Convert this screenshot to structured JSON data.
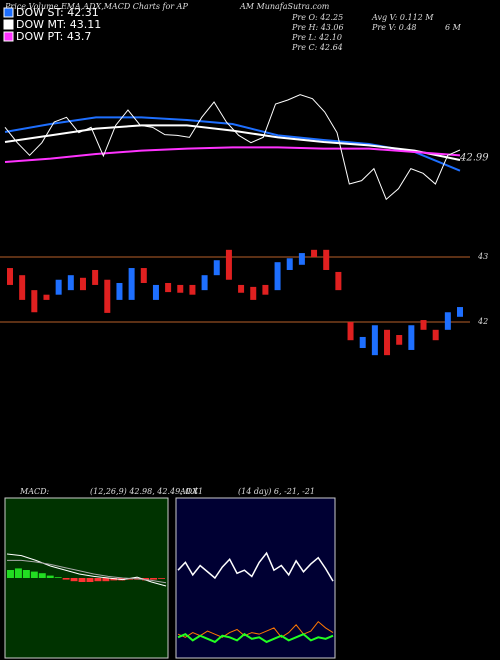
{
  "header": {
    "title": "Price,Volume,EMA,ADX,MACD Charts for AP",
    "site": "AM MunafaSutra.com"
  },
  "legend": [
    {
      "label": "DOW ST: 42.31",
      "color": "#1e6fff"
    },
    {
      "label": "DOW MT: 43.11",
      "color": "#ffffff"
    },
    {
      "label": "DOW PT: 43.7",
      "color": "#ff33ff"
    }
  ],
  "stats": [
    "Pre O: 42.25",
    "Pre H: 43.06",
    "Pre L: 42.10",
    "Pre C: 42.64",
    "Avg V: 0.112 M",
    "Pre V: 0.48",
    "6 M"
  ],
  "price_panel": {
    "ylim": [
      41.3,
      43.4
    ],
    "last_label": "42.99",
    "closes": [
      42.57,
      42.34,
      42.15,
      42.34,
      42.65,
      42.72,
      42.49,
      42.57,
      42.14,
      42.6,
      42.83,
      42.6,
      42.57,
      42.46,
      42.45,
      42.42,
      42.72,
      42.95,
      42.65,
      42.45,
      42.34,
      42.42,
      42.92,
      42.98,
      43.06,
      43.0,
      42.8,
      42.49,
      41.72,
      41.77,
      41.95,
      41.49,
      41.65,
      41.95,
      41.88,
      41.72,
      42.15,
      42.23
    ],
    "ema": [
      {
        "color": "#1e6fff",
        "values": [
          42.5,
          42.62,
          42.72,
          42.72,
          42.68,
          42.62,
          42.45,
          42.38,
          42.32,
          42.2,
          41.92
        ]
      },
      {
        "color": "#ffffff",
        "values": [
          42.35,
          42.45,
          42.55,
          42.6,
          42.6,
          42.52,
          42.42,
          42.35,
          42.3,
          42.22,
          42.08
        ]
      },
      {
        "color": "#ff33ff",
        "values": [
          42.05,
          42.1,
          42.17,
          42.22,
          42.25,
          42.27,
          42.27,
          42.25,
          42.25,
          42.2,
          42.15
        ]
      }
    ]
  },
  "candle_panel": {
    "ylim": [
      39.57,
      43.415
    ],
    "yticks": [
      42,
      43
    ],
    "candles": [
      {
        "open": 42.83,
        "close": 42.57
      },
      {
        "open": 42.72,
        "close": 42.34
      },
      {
        "open": 42.49,
        "close": 42.15
      },
      {
        "open": 42.42,
        "close": 42.34
      },
      {
        "open": 42.42,
        "close": 42.65
      },
      {
        "open": 42.49,
        "close": 42.72
      },
      {
        "open": 42.68,
        "close": 42.49
      },
      {
        "open": 42.8,
        "close": 42.57
      },
      {
        "open": 42.65,
        "close": 42.14
      },
      {
        "open": 42.34,
        "close": 42.6
      },
      {
        "open": 42.34,
        "close": 42.83
      },
      {
        "open": 42.83,
        "close": 42.6
      },
      {
        "open": 42.34,
        "close": 42.57
      },
      {
        "open": 42.6,
        "close": 42.46
      },
      {
        "open": 42.57,
        "close": 42.45
      },
      {
        "open": 42.57,
        "close": 42.42
      },
      {
        "open": 42.49,
        "close": 42.72
      },
      {
        "open": 42.72,
        "close": 42.95
      },
      {
        "open": 43.11,
        "close": 42.65
      },
      {
        "open": 42.57,
        "close": 42.45
      },
      {
        "open": 42.54,
        "close": 42.34
      },
      {
        "open": 42.57,
        "close": 42.42
      },
      {
        "open": 42.49,
        "close": 42.92
      },
      {
        "open": 42.8,
        "close": 42.98
      },
      {
        "open": 42.88,
        "close": 43.06
      },
      {
        "open": 43.11,
        "close": 43.0
      },
      {
        "open": 43.11,
        "close": 42.8
      },
      {
        "open": 42.77,
        "close": 42.49
      },
      {
        "open": 42.0,
        "close": 41.72
      },
      {
        "open": 41.6,
        "close": 41.77
      },
      {
        "open": 41.49,
        "close": 41.95
      },
      {
        "open": 41.88,
        "close": 41.49
      },
      {
        "open": 41.8,
        "close": 41.65
      },
      {
        "open": 41.57,
        "close": 41.95
      },
      {
        "open": 42.03,
        "close": 41.88
      },
      {
        "open": 41.88,
        "close": 41.72
      },
      {
        "open": 41.88,
        "close": 42.15
      },
      {
        "open": 42.08,
        "close": 42.23
      }
    ]
  },
  "macd": {
    "label": "MACD:",
    "params": "(12,26,9) 42.98, 42.49, 0.41",
    "ylim": [
      -1,
      1
    ],
    "macd": [
      0.3,
      0.28,
      0.22,
      0.15,
      0.1,
      0.05,
      0.02,
      0.0,
      -0.02,
      0.01,
      -0.05,
      -0.1
    ],
    "signal": [
      0.22,
      0.22,
      0.2,
      0.17,
      0.13,
      0.09,
      0.05,
      0.02,
      0.0,
      -0.01,
      -0.03,
      -0.06
    ],
    "hist": [
      0.1,
      0.12,
      0.1,
      0.08,
      0.06,
      0.03,
      0.01,
      -0.02,
      -0.04,
      -0.05,
      -0.05,
      -0.04,
      -0.04,
      -0.03,
      -0.03,
      -0.02,
      -0.02,
      -0.03,
      -0.02,
      -0.01
    ]
  },
  "adx": {
    "label": "ADX",
    "params": "(14 day) 6, -21, -21",
    "ylim": [
      0,
      100
    ],
    "adx": [
      55,
      60,
      52,
      58,
      54,
      50,
      57,
      62,
      53,
      55,
      51,
      60,
      66,
      55,
      58,
      52,
      61,
      54,
      59,
      63,
      56,
      48
    ],
    "plus": [
      12,
      14,
      10,
      13,
      11,
      9,
      13,
      12,
      10,
      14,
      11,
      12,
      9,
      11,
      13,
      10,
      12,
      14,
      10,
      12,
      11,
      13
    ],
    "minus": [
      14,
      12,
      15,
      13,
      16,
      14,
      12,
      15,
      17,
      13,
      15,
      14,
      16,
      18,
      12,
      15,
      20,
      14,
      16,
      22,
      18,
      15
    ]
  }
}
